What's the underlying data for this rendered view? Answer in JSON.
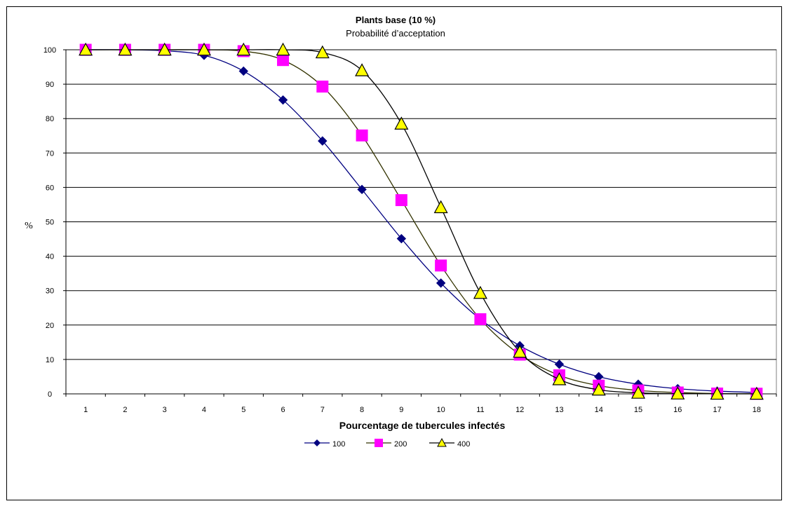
{
  "chart_data": {
    "type": "line",
    "title": "Plants base (10 %)",
    "subtitle": "Probabilité d’acceptation",
    "xlabel": "Pourcentage de tubercules infectés",
    "ylabel": "%",
    "categories": [
      "1",
      "2",
      "3",
      "4",
      "5",
      "6",
      "7",
      "8",
      "9",
      "10",
      "11",
      "12",
      "13",
      "14",
      "15",
      "16",
      "17",
      "18"
    ],
    "ylim": [
      0,
      100
    ],
    "yticks": [
      "0",
      "10",
      "20",
      "30",
      "40",
      "50",
      "60",
      "70",
      "80",
      "90",
      "100"
    ],
    "grid": true,
    "legend_position": "bottom",
    "series": [
      {
        "name": "100",
        "color": "#000080",
        "line_color": "#000080",
        "marker": "diamond",
        "values": [
          100,
          100,
          99.7,
          98.4,
          93.8,
          85.4,
          73.5,
          59.4,
          45.1,
          32.2,
          21.7,
          14,
          8.6,
          5,
          2.8,
          1.5,
          0.8,
          0.4
        ]
      },
      {
        "name": "200",
        "color": "#FF00FF",
        "line_color": "#333300",
        "marker": "square",
        "values": [
          100,
          100,
          100,
          100,
          99.6,
          97,
          89.3,
          75.1,
          56.3,
          37.3,
          21.7,
          11.4,
          5.4,
          2.4,
          1,
          0.4,
          0.1,
          0.05
        ]
      },
      {
        "name": "400",
        "color": "#FFFF00",
        "line_color": "#000000",
        "marker": "triangle",
        "values": [
          100,
          100,
          100,
          100,
          100,
          100,
          99.2,
          94,
          78.5,
          54.2,
          29.3,
          12.2,
          4.2,
          1.2,
          0.3,
          0.07,
          0.02,
          0.01
        ]
      }
    ]
  }
}
